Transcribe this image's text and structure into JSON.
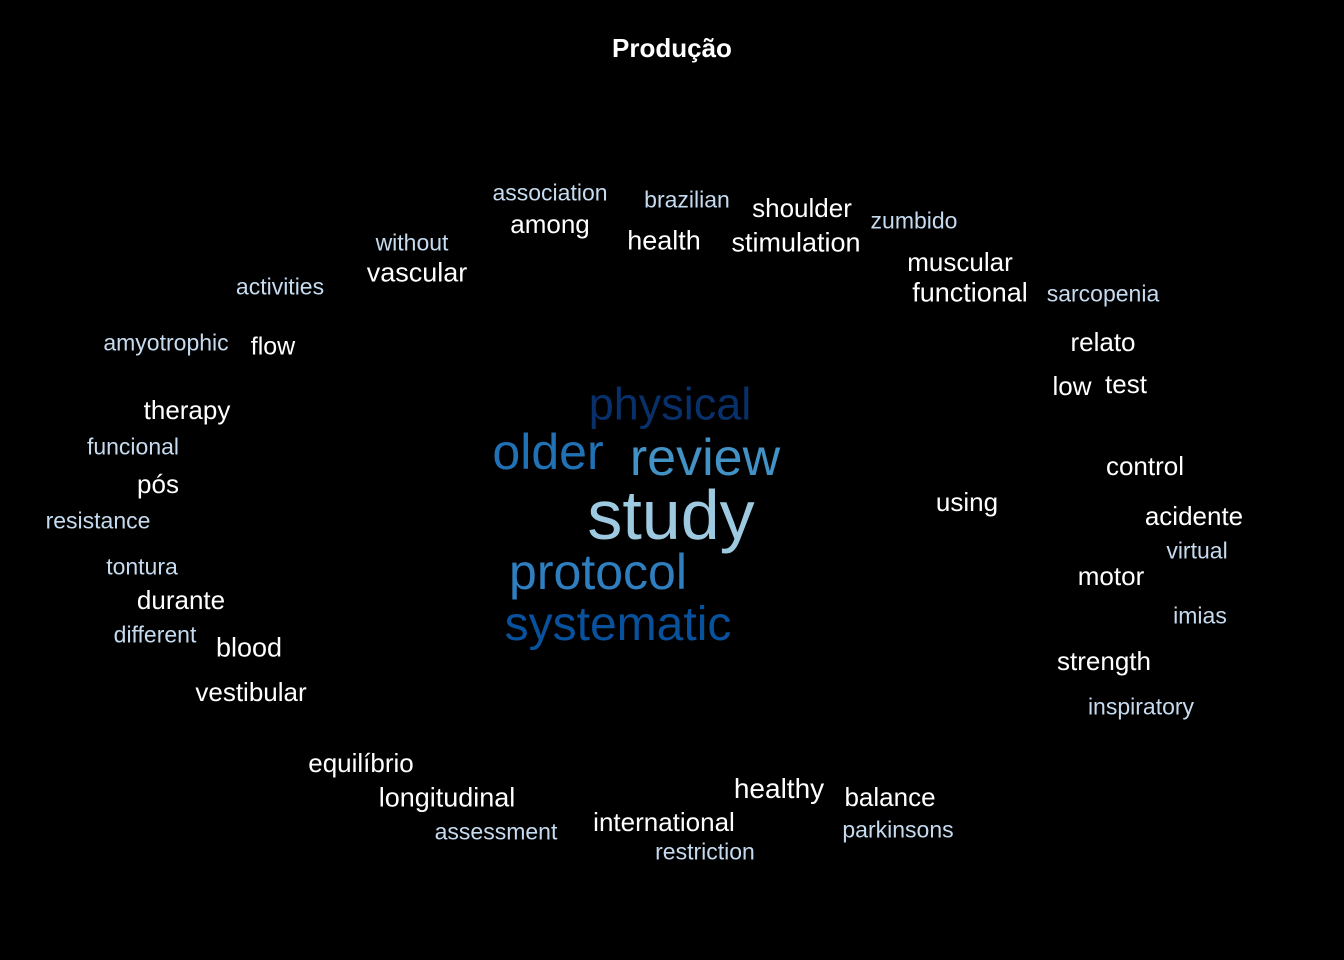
{
  "title": "Produção",
  "colors": {
    "background": "#000000",
    "title": "#ffffff",
    "white": "#ffffff",
    "pale_blue": "#c6dbef",
    "light_blue": "#9ecae1",
    "mid_blue": "#4292c6",
    "blue": "#2171b5",
    "dark_blue": "#08306b",
    "navy": "#08519c"
  },
  "words": [
    {
      "text": "study",
      "color": "#9ecae1"
    },
    {
      "text": "review",
      "color": "#4292c6"
    },
    {
      "text": "older",
      "color": "#2171b5"
    },
    {
      "text": "physical",
      "color": "#08306b"
    },
    {
      "text": "protocol",
      "color": "#2f7ec0"
    },
    {
      "text": "systematic",
      "color": "#08519c"
    },
    {
      "text": "association",
      "color": "#c6dbef"
    },
    {
      "text": "among",
      "color": "#ffffff"
    },
    {
      "text": "brazilian",
      "color": "#c6dbef"
    },
    {
      "text": "health",
      "color": "#ffffff"
    },
    {
      "text": "shoulder",
      "color": "#ffffff"
    },
    {
      "text": "stimulation",
      "color": "#ffffff"
    },
    {
      "text": "zumbido",
      "color": "#c6dbef"
    },
    {
      "text": "without",
      "color": "#c6dbef"
    },
    {
      "text": "vascular",
      "color": "#ffffff"
    },
    {
      "text": "muscular",
      "color": "#ffffff"
    },
    {
      "text": "functional",
      "color": "#ffffff"
    },
    {
      "text": "sarcopenia",
      "color": "#c6dbef"
    },
    {
      "text": "activities",
      "color": "#c6dbef"
    },
    {
      "text": "amyotrophic",
      "color": "#c6dbef"
    },
    {
      "text": "flow",
      "color": "#ffffff"
    },
    {
      "text": "relato",
      "color": "#ffffff"
    },
    {
      "text": "low",
      "color": "#ffffff"
    },
    {
      "text": "test",
      "color": "#ffffff"
    },
    {
      "text": "therapy",
      "color": "#ffffff"
    },
    {
      "text": "funcional",
      "color": "#c6dbef"
    },
    {
      "text": "pós",
      "color": "#ffffff"
    },
    {
      "text": "resistance",
      "color": "#c6dbef"
    },
    {
      "text": "control",
      "color": "#ffffff"
    },
    {
      "text": "using",
      "color": "#ffffff"
    },
    {
      "text": "acidente",
      "color": "#ffffff"
    },
    {
      "text": "virtual",
      "color": "#c6dbef"
    },
    {
      "text": "tontura",
      "color": "#c6dbef"
    },
    {
      "text": "durante",
      "color": "#ffffff"
    },
    {
      "text": "motor",
      "color": "#ffffff"
    },
    {
      "text": "different",
      "color": "#c6dbef"
    },
    {
      "text": "blood",
      "color": "#ffffff"
    },
    {
      "text": "imias",
      "color": "#c6dbef"
    },
    {
      "text": "strength",
      "color": "#ffffff"
    },
    {
      "text": "vestibular",
      "color": "#ffffff"
    },
    {
      "text": "inspiratory",
      "color": "#c6dbef"
    },
    {
      "text": "equilíbrio",
      "color": "#ffffff"
    },
    {
      "text": "longitudinal",
      "color": "#ffffff"
    },
    {
      "text": "healthy",
      "color": "#ffffff"
    },
    {
      "text": "balance",
      "color": "#ffffff"
    },
    {
      "text": "assessment",
      "color": "#c6dbef"
    },
    {
      "text": "international",
      "color": "#ffffff"
    },
    {
      "text": "parkinsons",
      "color": "#c6dbef"
    },
    {
      "text": "restriction",
      "color": "#c6dbef"
    }
  ]
}
